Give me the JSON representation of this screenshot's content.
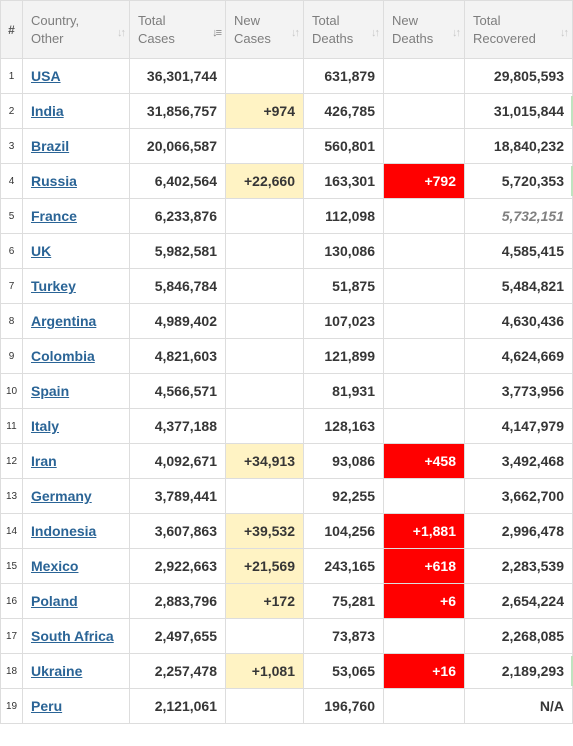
{
  "headers": [
    {
      "label": "#",
      "sortable": false,
      "active": false
    },
    {
      "label": "Country, Other",
      "sortable": true,
      "active": false
    },
    {
      "label": "Total Cases",
      "sortable": true,
      "active": true
    },
    {
      "label": "New Cases",
      "sortable": true,
      "active": false
    },
    {
      "label": "Total Deaths",
      "sortable": true,
      "active": false
    },
    {
      "label": "New Deaths",
      "sortable": true,
      "active": false
    },
    {
      "label": "Total Recovered",
      "sortable": true,
      "active": false
    }
  ],
  "sort_icons": {
    "inactive": "↓↑",
    "active_desc": "↓≡"
  },
  "rows": [
    {
      "rank": "1",
      "country": "USA",
      "total_cases": "36,301,744",
      "new_cases": "",
      "total_deaths": "631,879",
      "new_deaths": "",
      "total_recovered": "29,805,593",
      "recovered_italic": false,
      "mark": false
    },
    {
      "rank": "2",
      "country": "India",
      "total_cases": "31,856,757",
      "new_cases": "+974",
      "total_deaths": "426,785",
      "new_deaths": "",
      "total_recovered": "31,015,844",
      "recovered_italic": false,
      "mark": true
    },
    {
      "rank": "3",
      "country": "Brazil",
      "total_cases": "20,066,587",
      "new_cases": "",
      "total_deaths": "560,801",
      "new_deaths": "",
      "total_recovered": "18,840,232",
      "recovered_italic": false,
      "mark": false
    },
    {
      "rank": "4",
      "country": "Russia",
      "total_cases": "6,402,564",
      "new_cases": "+22,660",
      "total_deaths": "163,301",
      "new_deaths": "+792",
      "total_recovered": "5,720,353",
      "recovered_italic": false,
      "mark": true
    },
    {
      "rank": "5",
      "country": "France",
      "total_cases": "6,233,876",
      "new_cases": "",
      "total_deaths": "112,098",
      "new_deaths": "",
      "total_recovered": "5,732,151",
      "recovered_italic": true,
      "mark": false
    },
    {
      "rank": "6",
      "country": "UK",
      "total_cases": "5,982,581",
      "new_cases": "",
      "total_deaths": "130,086",
      "new_deaths": "",
      "total_recovered": "4,585,415",
      "recovered_italic": false,
      "mark": false
    },
    {
      "rank": "7",
      "country": "Turkey",
      "total_cases": "5,846,784",
      "new_cases": "",
      "total_deaths": "51,875",
      "new_deaths": "",
      "total_recovered": "5,484,821",
      "recovered_italic": false,
      "mark": false
    },
    {
      "rank": "8",
      "country": "Argentina",
      "total_cases": "4,989,402",
      "new_cases": "",
      "total_deaths": "107,023",
      "new_deaths": "",
      "total_recovered": "4,630,436",
      "recovered_italic": false,
      "mark": false
    },
    {
      "rank": "9",
      "country": "Colombia",
      "total_cases": "4,821,603",
      "new_cases": "",
      "total_deaths": "121,899",
      "new_deaths": "",
      "total_recovered": "4,624,669",
      "recovered_italic": false,
      "mark": false
    },
    {
      "rank": "10",
      "country": "Spain",
      "total_cases": "4,566,571",
      "new_cases": "",
      "total_deaths": "81,931",
      "new_deaths": "",
      "total_recovered": "3,773,956",
      "recovered_italic": false,
      "mark": false
    },
    {
      "rank": "11",
      "country": "Italy",
      "total_cases": "4,377,188",
      "new_cases": "",
      "total_deaths": "128,163",
      "new_deaths": "",
      "total_recovered": "4,147,979",
      "recovered_italic": false,
      "mark": false
    },
    {
      "rank": "12",
      "country": "Iran",
      "total_cases": "4,092,671",
      "new_cases": "+34,913",
      "total_deaths": "93,086",
      "new_deaths": "+458",
      "total_recovered": "3,492,468",
      "recovered_italic": false,
      "mark": false
    },
    {
      "rank": "13",
      "country": "Germany",
      "total_cases": "3,789,441",
      "new_cases": "",
      "total_deaths": "92,255",
      "new_deaths": "",
      "total_recovered": "3,662,700",
      "recovered_italic": false,
      "mark": false
    },
    {
      "rank": "14",
      "country": "Indonesia",
      "total_cases": "3,607,863",
      "new_cases": "+39,532",
      "total_deaths": "104,256",
      "new_deaths": "+1,881",
      "total_recovered": "2,996,478",
      "recovered_italic": false,
      "mark": false
    },
    {
      "rank": "15",
      "country": "Mexico",
      "total_cases": "2,922,663",
      "new_cases": "+21,569",
      "total_deaths": "243,165",
      "new_deaths": "+618",
      "total_recovered": "2,283,539",
      "recovered_italic": false,
      "mark": false
    },
    {
      "rank": "16",
      "country": "Poland",
      "total_cases": "2,883,796",
      "new_cases": "+172",
      "total_deaths": "75,281",
      "new_deaths": "+6",
      "total_recovered": "2,654,224",
      "recovered_italic": false,
      "mark": false
    },
    {
      "rank": "17",
      "country": "South Africa",
      "total_cases": "2,497,655",
      "new_cases": "",
      "total_deaths": "73,873",
      "new_deaths": "",
      "total_recovered": "2,268,085",
      "recovered_italic": false,
      "mark": false
    },
    {
      "rank": "18",
      "country": "Ukraine",
      "total_cases": "2,257,478",
      "new_cases": "+1,081",
      "total_deaths": "53,065",
      "new_deaths": "+16",
      "total_recovered": "2,189,293",
      "recovered_italic": false,
      "mark": true
    },
    {
      "rank": "19",
      "country": "Peru",
      "total_cases": "2,121,061",
      "new_cases": "",
      "total_deaths": "196,760",
      "new_deaths": "",
      "total_recovered": "N/A",
      "recovered_italic": false,
      "mark": false
    }
  ],
  "colors": {
    "new_cases_bg": "#fff3c4",
    "new_deaths_bg": "#ff0000",
    "link": "#2a6496",
    "recovered_mark": "#bfe3bf"
  }
}
